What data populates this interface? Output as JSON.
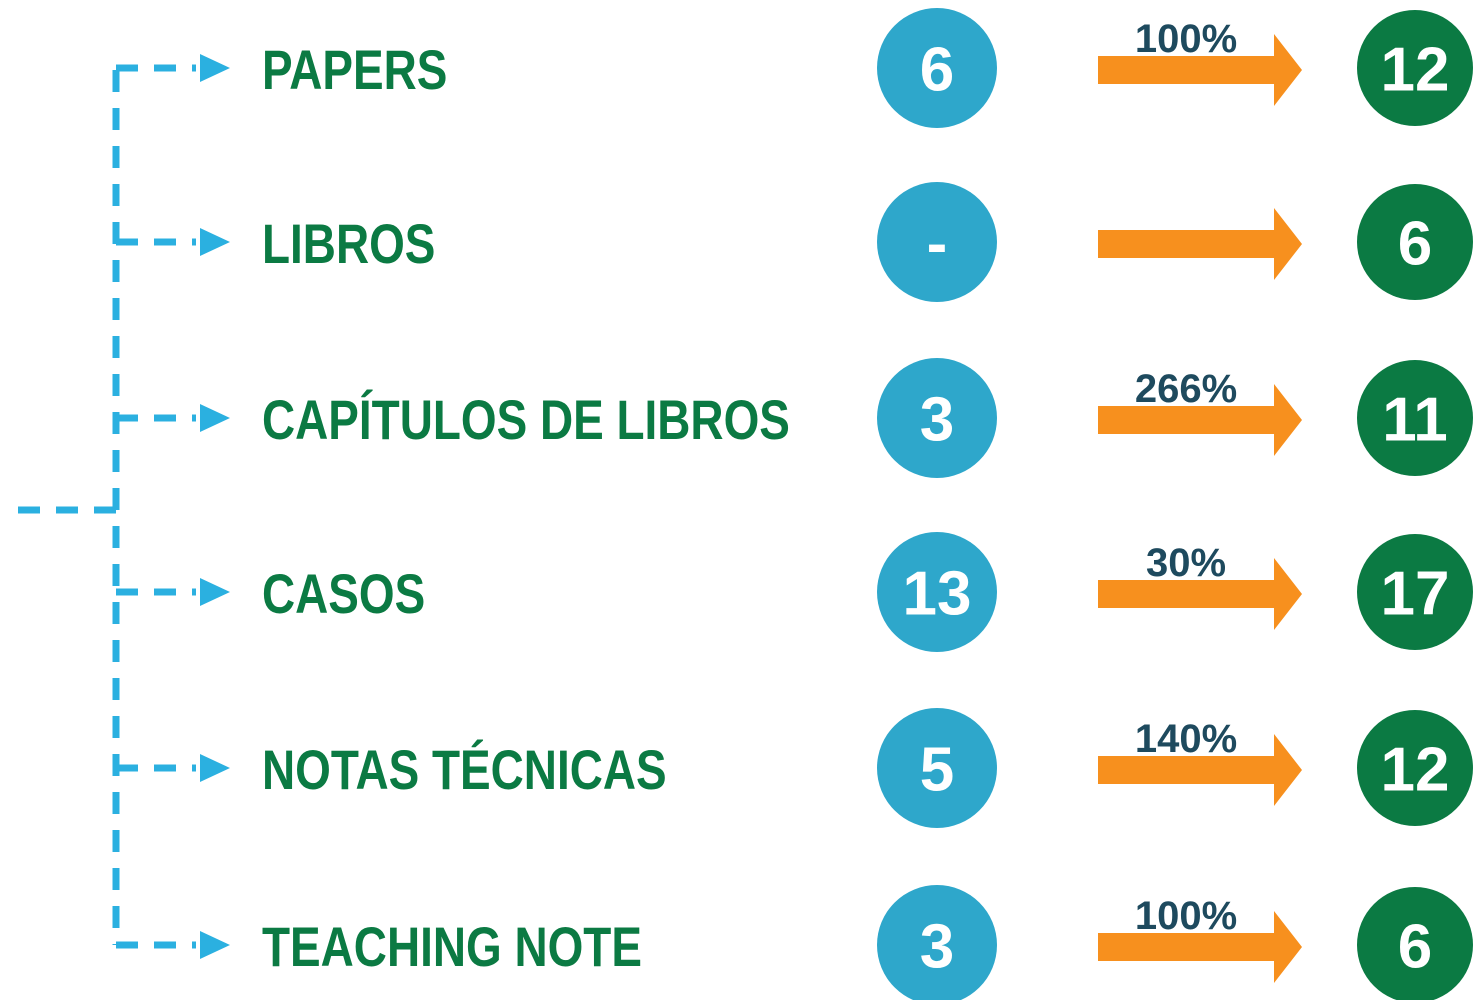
{
  "rows": [
    {
      "label": "PAPERS",
      "before": "6",
      "change": "100%",
      "after": "12"
    },
    {
      "label": "LIBROS",
      "before": "-",
      "change": null,
      "after": "6"
    },
    {
      "label": "CAPÍTULOS DE LIBROS",
      "before": "3",
      "change": "266%",
      "after": "11"
    },
    {
      "label": "CASOS",
      "before": "13",
      "change": "30%",
      "after": "17"
    },
    {
      "label": "NOTAS TÉCNICAS",
      "before": "5",
      "change": "140%",
      "after": "12"
    },
    {
      "label": "TEACHING NOTE",
      "before": "3",
      "change": "100%",
      "after": "6"
    }
  ]
}
